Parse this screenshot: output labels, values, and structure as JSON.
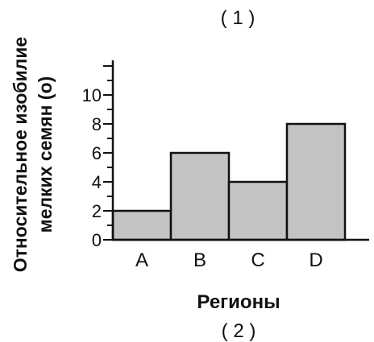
{
  "chart_data": {
    "type": "bar",
    "title": "( 1 )",
    "caption": "( 2 )",
    "xlabel": "Регионы",
    "ylabel_line1": "Относительное изобилие",
    "ylabel_line2": "мелких семян (o)",
    "categories": [
      "A",
      "B",
      "C",
      "D"
    ],
    "values": [
      2,
      6,
      4,
      8
    ],
    "ylim": [
      0,
      12
    ],
    "yticks": [
      0,
      2,
      4,
      6,
      8,
      10
    ],
    "bar_color": "#c3c3c4",
    "edge_color": "#111111",
    "grid": false
  }
}
